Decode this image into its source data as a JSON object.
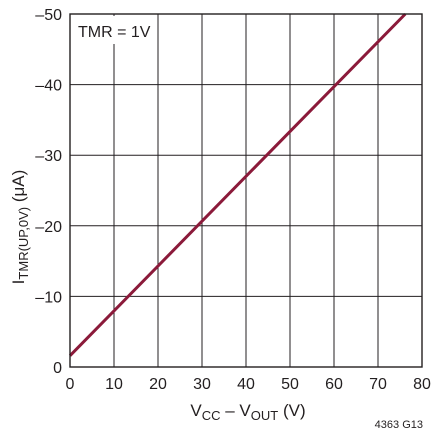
{
  "chart_data": {
    "type": "line",
    "annotation": "TMR = 1V",
    "ylabel": {
      "main": "I",
      "sub": "TMR(UP,0V)",
      "unit": " (μA)"
    },
    "xlabel": {
      "p1": "V",
      "s1": "CC",
      "p2": " – V",
      "s2": "OUT",
      "p3": " (V)"
    },
    "figure_id": "4363 G13",
    "xlim": [
      0,
      80
    ],
    "ylim": [
      0,
      -50
    ],
    "x_ticks": [
      0,
      10,
      20,
      30,
      40,
      50,
      60,
      70,
      80
    ],
    "x_tick_labels": [
      "0",
      "10",
      "20",
      "30",
      "40",
      "50",
      "60",
      "70",
      "80"
    ],
    "y_ticks": [
      0,
      -10,
      -20,
      -30,
      -40,
      -50
    ],
    "y_tick_labels": [
      "0",
      "–10",
      "–20",
      "–30",
      "–40",
      "–50"
    ],
    "grid": true,
    "series": [
      {
        "color": "#8b1a3a",
        "x": [
          0,
          76.2
        ],
        "y": [
          -1.6,
          -50
        ]
      }
    ]
  }
}
